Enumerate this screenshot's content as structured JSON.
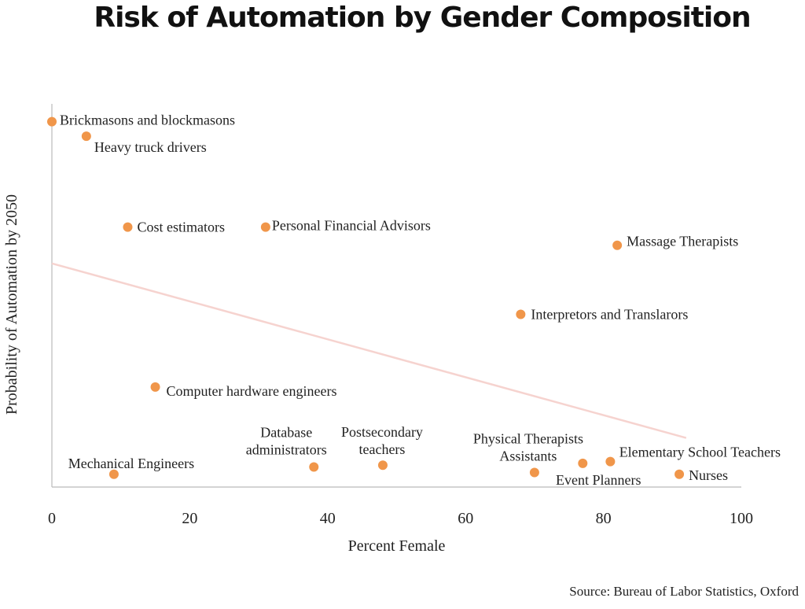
{
  "title": "Risk of Automation by Gender Composition",
  "source": "Source: Bureau of Labor Statistics, Oxford",
  "colors": {
    "point": "#F0964A",
    "trendline": "#F6D3CF",
    "axis": "#BBBBBB"
  },
  "chart_data": {
    "type": "scatter",
    "title": "Risk of Automation by Gender Composition",
    "xlabel": "Percent Female",
    "ylabel": "Probability of Automation by 2050",
    "xlim": [
      0,
      100
    ],
    "ylim": [
      0,
      1
    ],
    "x_ticks": [
      "0",
      "20",
      "40",
      "60",
      "80",
      "100"
    ],
    "y_ticks_shown": false,
    "grid": false,
    "legend": "none",
    "points": [
      {
        "label": "Brickmasons and blockmasons",
        "x": 0,
        "y": 0.99
      },
      {
        "label": "Heavy truck drivers",
        "x": 5,
        "y": 0.95
      },
      {
        "label": "Cost estimators",
        "x": 11,
        "y": 0.7
      },
      {
        "label": "Personal Financial Advisors",
        "x": 31,
        "y": 0.7
      },
      {
        "label": "Massage Therapists",
        "x": 82,
        "y": 0.65
      },
      {
        "label": "Interpretors and Translarors",
        "x": 68,
        "y": 0.46
      },
      {
        "label": "Computer hardware engineers",
        "x": 15,
        "y": 0.26
      },
      {
        "label": "Mechanical Engineers",
        "x": 9,
        "y": 0.02
      },
      {
        "label": "Database administrators",
        "x": 38,
        "y": 0.04
      },
      {
        "label": "Postsecondary teachers",
        "x": 48,
        "y": 0.045
      },
      {
        "label": "Physical Therapists Assistants",
        "x": 70,
        "y": 0.025
      },
      {
        "label": "Event Planners",
        "x": 77,
        "y": 0.05
      },
      {
        "label": "Elementary School Teachers",
        "x": 81,
        "y": 0.055
      },
      {
        "label": "Nurses",
        "x": 91,
        "y": 0.02
      }
    ],
    "trendline": {
      "x": [
        0,
        92
      ],
      "y": [
        0.6,
        0.12
      ]
    }
  }
}
